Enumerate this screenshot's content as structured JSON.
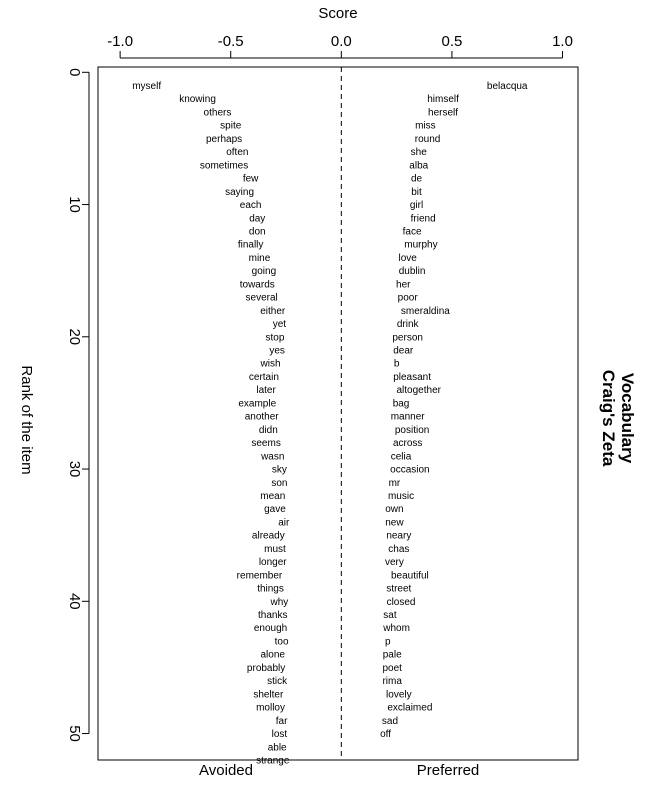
{
  "chart_data": {
    "type": "scatter",
    "top_axis_label": "Score",
    "left_axis_label": "Rank of the item",
    "right_title_line1": "Vocabulary",
    "right_title_line2": "Craig's Zeta",
    "bottom_left_label": "Avoided",
    "bottom_right_label": "Preferred",
    "xlim": [
      -1.1,
      1.07
    ],
    "ylim": [
      -0.4,
      52
    ],
    "x_ticks": [
      -1.0,
      -0.5,
      0.0,
      0.5,
      1.0
    ],
    "x_tick_labels": [
      "-1.0",
      "-0.5",
      "0.0",
      "0.5",
      "1.0"
    ],
    "y_ticks": [
      0,
      10,
      20,
      30,
      40,
      50
    ],
    "y_tick_labels": [
      "0",
      "10",
      "20",
      "30",
      "40",
      "50"
    ],
    "reference_line_x": 0,
    "avoided": [
      {
        "word": "myself",
        "x": -0.88,
        "rank": 1
      },
      {
        "word": "knowing",
        "x": -0.65,
        "rank": 2
      },
      {
        "word": "others",
        "x": -0.56,
        "rank": 3
      },
      {
        "word": "spite",
        "x": -0.5,
        "rank": 4
      },
      {
        "word": "perhaps",
        "x": -0.53,
        "rank": 5
      },
      {
        "word": "often",
        "x": -0.47,
        "rank": 6
      },
      {
        "word": "sometimes",
        "x": -0.53,
        "rank": 7
      },
      {
        "word": "few",
        "x": -0.41,
        "rank": 8
      },
      {
        "word": "saying",
        "x": -0.46,
        "rank": 9
      },
      {
        "word": "each",
        "x": -0.41,
        "rank": 10
      },
      {
        "word": "day",
        "x": -0.38,
        "rank": 11
      },
      {
        "word": "don",
        "x": -0.38,
        "rank": 12
      },
      {
        "word": "finally",
        "x": -0.41,
        "rank": 13
      },
      {
        "word": "mine",
        "x": -0.37,
        "rank": 14
      },
      {
        "word": "going",
        "x": -0.35,
        "rank": 15
      },
      {
        "word": "towards",
        "x": -0.38,
        "rank": 16
      },
      {
        "word": "several",
        "x": -0.36,
        "rank": 17
      },
      {
        "word": "either",
        "x": -0.31,
        "rank": 18
      },
      {
        "word": "yet",
        "x": -0.28,
        "rank": 19
      },
      {
        "word": "stop",
        "x": -0.3,
        "rank": 20
      },
      {
        "word": "yes",
        "x": -0.29,
        "rank": 21
      },
      {
        "word": "wish",
        "x": -0.32,
        "rank": 22
      },
      {
        "word": "certain",
        "x": -0.35,
        "rank": 23
      },
      {
        "word": "later",
        "x": -0.34,
        "rank": 24
      },
      {
        "word": "example",
        "x": -0.38,
        "rank": 25
      },
      {
        "word": "another",
        "x": -0.36,
        "rank": 26
      },
      {
        "word": "didn",
        "x": -0.33,
        "rank": 27
      },
      {
        "word": "seems",
        "x": -0.34,
        "rank": 28
      },
      {
        "word": "wasn",
        "x": -0.31,
        "rank": 29
      },
      {
        "word": "sky",
        "x": -0.28,
        "rank": 30
      },
      {
        "word": "son",
        "x": -0.28,
        "rank": 31
      },
      {
        "word": "mean",
        "x": -0.31,
        "rank": 32
      },
      {
        "word": "gave",
        "x": -0.3,
        "rank": 33
      },
      {
        "word": "air",
        "x": -0.26,
        "rank": 34
      },
      {
        "word": "already",
        "x": -0.33,
        "rank": 35
      },
      {
        "word": "must",
        "x": -0.3,
        "rank": 36
      },
      {
        "word": "longer",
        "x": -0.31,
        "rank": 37
      },
      {
        "word": "remember",
        "x": -0.37,
        "rank": 38
      },
      {
        "word": "things",
        "x": -0.32,
        "rank": 39
      },
      {
        "word": "why",
        "x": -0.28,
        "rank": 40
      },
      {
        "word": "thanks",
        "x": -0.31,
        "rank": 41
      },
      {
        "word": "enough",
        "x": -0.32,
        "rank": 42
      },
      {
        "word": "too",
        "x": -0.27,
        "rank": 43
      },
      {
        "word": "alone",
        "x": -0.31,
        "rank": 44
      },
      {
        "word": "probably",
        "x": -0.34,
        "rank": 45
      },
      {
        "word": "stick",
        "x": -0.29,
        "rank": 46
      },
      {
        "word": "shelter",
        "x": -0.33,
        "rank": 47
      },
      {
        "word": "molloy",
        "x": -0.32,
        "rank": 48
      },
      {
        "word": "far",
        "x": -0.27,
        "rank": 49
      },
      {
        "word": "lost",
        "x": -0.28,
        "rank": 50
      },
      {
        "word": "able",
        "x": -0.29,
        "rank": 51
      },
      {
        "word": "strange",
        "x": -0.31,
        "rank": 52
      }
    ],
    "preferred": [
      {
        "word": "belacqua",
        "x": 0.75,
        "rank": 1
      },
      {
        "word": "himself",
        "x": 0.46,
        "rank": 2
      },
      {
        "word": "herself",
        "x": 0.46,
        "rank": 3
      },
      {
        "word": "miss",
        "x": 0.38,
        "rank": 4
      },
      {
        "word": "round",
        "x": 0.39,
        "rank": 5
      },
      {
        "word": "she",
        "x": 0.35,
        "rank": 6
      },
      {
        "word": "alba",
        "x": 0.35,
        "rank": 7
      },
      {
        "word": "de",
        "x": 0.34,
        "rank": 8
      },
      {
        "word": "bit",
        "x": 0.34,
        "rank": 9
      },
      {
        "word": "girl",
        "x": 0.34,
        "rank": 10
      },
      {
        "word": "friend",
        "x": 0.37,
        "rank": 11
      },
      {
        "word": "face",
        "x": 0.32,
        "rank": 12
      },
      {
        "word": "murphy",
        "x": 0.36,
        "rank": 13
      },
      {
        "word": "love",
        "x": 0.3,
        "rank": 14
      },
      {
        "word": "dublin",
        "x": 0.32,
        "rank": 15
      },
      {
        "word": "her",
        "x": 0.28,
        "rank": 16
      },
      {
        "word": "poor",
        "x": 0.3,
        "rank": 17
      },
      {
        "word": "smeraldina",
        "x": 0.38,
        "rank": 18
      },
      {
        "word": "drink",
        "x": 0.3,
        "rank": 19
      },
      {
        "word": "person",
        "x": 0.3,
        "rank": 20
      },
      {
        "word": "dear",
        "x": 0.28,
        "rank": 21
      },
      {
        "word": "b",
        "x": 0.25,
        "rank": 22
      },
      {
        "word": "pleasant",
        "x": 0.32,
        "rank": 23
      },
      {
        "word": "altogether",
        "x": 0.35,
        "rank": 24
      },
      {
        "word": "bag",
        "x": 0.27,
        "rank": 25
      },
      {
        "word": "manner",
        "x": 0.3,
        "rank": 26
      },
      {
        "word": "position",
        "x": 0.32,
        "rank": 27
      },
      {
        "word": "across",
        "x": 0.3,
        "rank": 28
      },
      {
        "word": "celia",
        "x": 0.27,
        "rank": 29
      },
      {
        "word": "occasion",
        "x": 0.31,
        "rank": 30
      },
      {
        "word": "mr",
        "x": 0.24,
        "rank": 31
      },
      {
        "word": "music",
        "x": 0.27,
        "rank": 32
      },
      {
        "word": "own",
        "x": 0.24,
        "rank": 33
      },
      {
        "word": "new",
        "x": 0.24,
        "rank": 34
      },
      {
        "word": "neary",
        "x": 0.26,
        "rank": 35
      },
      {
        "word": "chas",
        "x": 0.26,
        "rank": 36
      },
      {
        "word": "very",
        "x": 0.24,
        "rank": 37
      },
      {
        "word": "beautiful",
        "x": 0.31,
        "rank": 38
      },
      {
        "word": "street",
        "x": 0.26,
        "rank": 39
      },
      {
        "word": "closed",
        "x": 0.27,
        "rank": 40
      },
      {
        "word": "sat",
        "x": 0.22,
        "rank": 41
      },
      {
        "word": "whom",
        "x": 0.25,
        "rank": 42
      },
      {
        "word": "p",
        "x": 0.21,
        "rank": 43
      },
      {
        "word": "pale",
        "x": 0.23,
        "rank": 44
      },
      {
        "word": "poet",
        "x": 0.23,
        "rank": 45
      },
      {
        "word": "rima",
        "x": 0.23,
        "rank": 46
      },
      {
        "word": "lovely",
        "x": 0.26,
        "rank": 47
      },
      {
        "word": "exclaimed",
        "x": 0.31,
        "rank": 48
      },
      {
        "word": "sad",
        "x": 0.22,
        "rank": 49
      },
      {
        "word": "off",
        "x": 0.2,
        "rank": 50
      }
    ]
  }
}
